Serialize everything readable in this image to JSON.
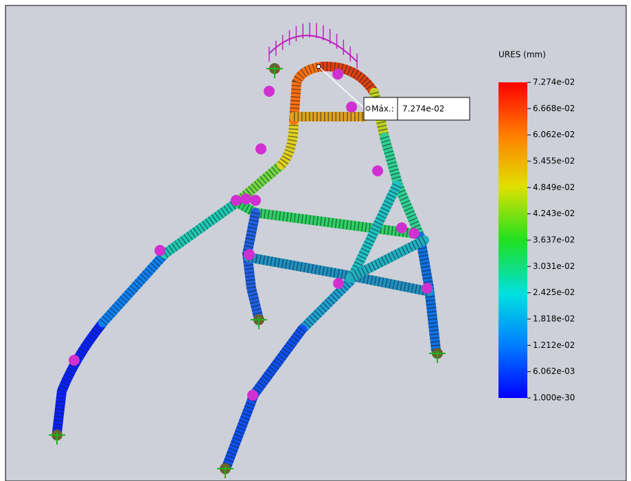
{
  "legend": {
    "title": "URES (mm)",
    "labels": [
      "7.274e-02",
      "6.668e-02",
      "6.062e-02",
      "5.455e-02",
      "4.849e-02",
      "4.243e-02",
      "3.637e-02",
      "3.031e-02",
      "2.425e-02",
      "1.818e-02",
      "1.212e-02",
      "6.062e-03",
      "1.000e-30"
    ]
  },
  "annotation": {
    "label": "Máx.:",
    "value": "7.274e-02"
  }
}
